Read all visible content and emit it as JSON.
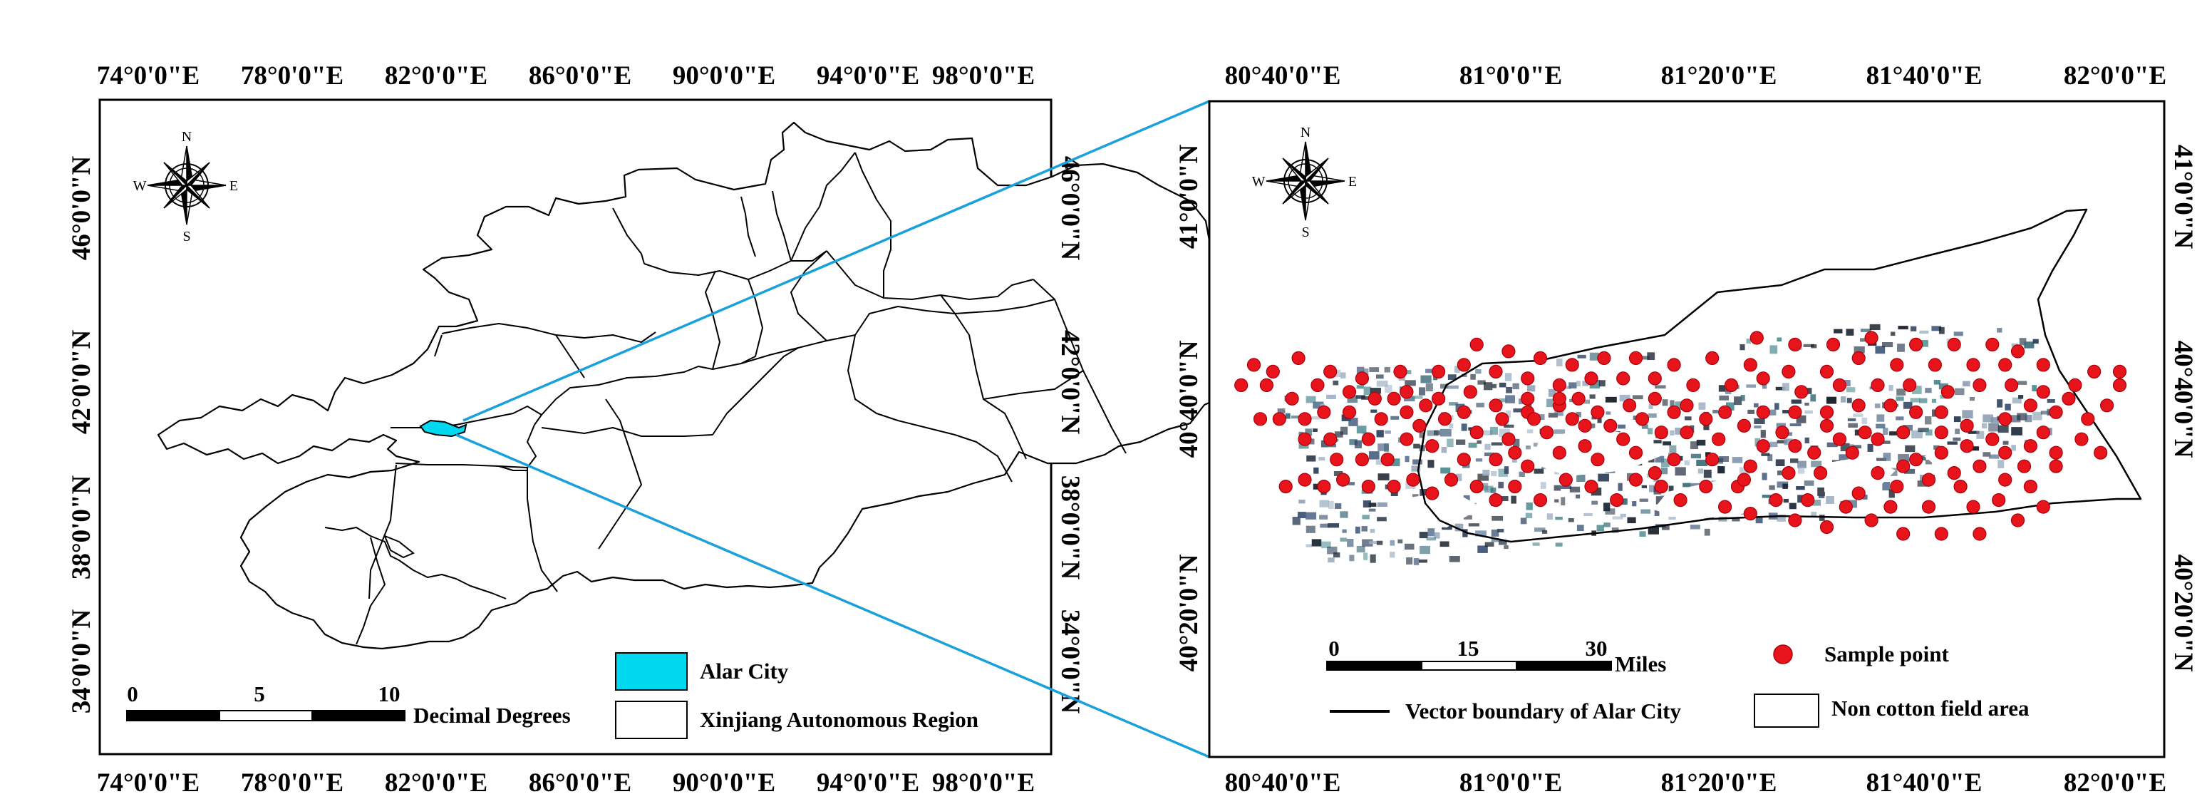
{
  "left_map": {
    "top_lon_labels": [
      "74°0'0\"E",
      "78°0'0\"E",
      "82°0'0\"E",
      "86°0'0\"E",
      "90°0'0\"E",
      "94°0'0\"E",
      "98°0'0\"E"
    ],
    "bottom_lon_labels": [
      "74°0'0\"E",
      "78°0'0\"E",
      "82°0'0\"E",
      "86°0'0\"E",
      "90°0'0\"E",
      "94°0'0\"E",
      "98°0'0\"E"
    ],
    "left_lat_labels": [
      "46°0'0\"N",
      "42°0'0\"N",
      "38°0'0\"N",
      "34°0'0\"N"
    ],
    "right_lat_labels": [
      "46°0'0\"N",
      "42°0'0\"N",
      "38°0'0\"N",
      "34°0'0\"N"
    ],
    "compass": {
      "n": "N",
      "s": "S",
      "e": "E",
      "w": "W"
    },
    "scale": {
      "ticks": [
        "0",
        "5",
        "10"
      ],
      "unit": "Decimal Degrees"
    },
    "legend": [
      {
        "label": "Alar City",
        "color": "#00d8f0"
      },
      {
        "label": "Xinjiang Autonomous Region",
        "color": "#ffffff"
      }
    ]
  },
  "right_map": {
    "top_lon_labels": [
      "80°40'0\"E",
      "81°0'0\"E",
      "81°20'0\"E",
      "81°40'0\"E",
      "82°0'0\"E"
    ],
    "bottom_lon_labels": [
      "80°40'0\"E",
      "81°0'0\"E",
      "81°20'0\"E",
      "81°40'0\"E",
      "82°0'0\"E"
    ],
    "left_lat_labels": [
      "41°0'0\"N",
      "40°40'0\"N",
      "40°20'0\"N"
    ],
    "right_lat_labels": [
      "41°0'0\"N",
      "40°40'0\"N",
      "40°20'0\"N"
    ],
    "compass": {
      "n": "N",
      "s": "S",
      "e": "E",
      "w": "W"
    },
    "scale": {
      "ticks": [
        "0",
        "15",
        "30"
      ],
      "unit": "Miles"
    },
    "legend": {
      "sample_point": "Sample point",
      "vector_boundary": "Vector boundary of Alar City",
      "non_cotton": "Non cotton field area"
    },
    "sample_color": "#e8141c",
    "sample_points": [
      [
        81.84,
        40.61
      ],
      [
        81.88,
        40.6
      ],
      [
        81.86,
        40.63
      ],
      [
        81.92,
        40.62
      ],
      [
        81.95,
        40.6
      ],
      [
        81.83,
        40.58
      ],
      [
        81.88,
        40.58
      ],
      [
        81.8,
        40.6
      ],
      [
        81.78,
        40.62
      ],
      [
        81.74,
        40.61
      ],
      [
        81.7,
        40.6
      ],
      [
        81.66,
        40.59
      ],
      [
        81.7,
        40.63
      ],
      [
        81.76,
        40.58
      ],
      [
        81.8,
        40.56
      ],
      [
        81.84,
        40.55
      ],
      [
        81.79,
        40.53
      ],
      [
        81.73,
        40.55
      ],
      [
        81.68,
        40.56
      ],
      [
        81.63,
        40.55
      ],
      [
        81.6,
        40.57
      ],
      [
        81.57,
        40.54
      ],
      [
        81.62,
        40.52
      ],
      [
        81.68,
        40.52
      ],
      [
        81.75,
        40.52
      ],
      [
        81.82,
        40.5
      ],
      [
        81.86,
        40.52
      ],
      [
        81.76,
        40.48
      ],
      [
        81.7,
        40.48
      ],
      [
        81.64,
        40.48
      ],
      [
        81.59,
        40.5
      ],
      [
        81.55,
        40.52
      ],
      [
        81.52,
        40.49
      ],
      [
        81.47,
        40.5
      ],
      [
        81.49,
        40.53
      ],
      [
        81.44,
        40.53
      ],
      [
        81.4,
        40.51
      ],
      [
        81.36,
        40.52
      ],
      [
        81.33,
        40.55
      ],
      [
        81.38,
        40.55
      ],
      [
        81.29,
        40.53
      ],
      [
        81.26,
        40.55
      ],
      [
        81.22,
        40.56
      ],
      [
        81.19,
        40.53
      ],
      [
        81.15,
        40.55
      ],
      [
        81.11,
        40.56
      ],
      [
        81.07,
        40.53
      ],
      [
        81.03,
        40.55
      ],
      [
        81.0,
        40.53
      ],
      [
        80.97,
        40.55
      ],
      [
        80.93,
        40.56
      ],
      [
        80.9,
        40.54
      ],
      [
        80.87,
        40.56
      ],
      [
        80.84,
        40.55
      ],
      [
        80.8,
        40.55
      ],
      [
        80.76,
        40.56
      ],
      [
        80.73,
        40.55
      ],
      [
        80.7,
        40.56
      ],
      [
        80.67,
        40.55
      ],
      [
        80.83,
        40.59
      ],
      [
        80.79,
        40.59
      ],
      [
        80.75,
        40.59
      ],
      [
        80.86,
        40.62
      ],
      [
        80.9,
        40.61
      ],
      [
        80.95,
        40.59
      ],
      [
        81.0,
        40.59
      ],
      [
        81.05,
        40.58
      ],
      [
        81.1,
        40.6
      ],
      [
        81.16,
        40.59
      ],
      [
        81.22,
        40.6
      ],
      [
        81.28,
        40.59
      ],
      [
        81.34,
        40.59
      ],
      [
        81.4,
        40.58
      ],
      [
        81.46,
        40.57
      ],
      [
        81.5,
        40.6
      ],
      [
        81.56,
        40.6
      ],
      [
        81.6,
        40.62
      ],
      [
        81.54,
        40.62
      ],
      [
        81.47,
        40.61
      ],
      [
        81.42,
        40.61
      ],
      [
        81.35,
        40.62
      ],
      [
        81.3,
        40.63
      ],
      [
        81.26,
        40.63
      ],
      [
        81.2,
        40.62
      ],
      [
        81.14,
        40.64
      ],
      [
        81.08,
        40.63
      ],
      [
        81.02,
        40.62
      ],
      [
        80.97,
        40.63
      ],
      [
        80.92,
        40.65
      ],
      [
        80.86,
        40.66
      ],
      [
        80.82,
        40.65
      ],
      [
        80.77,
        40.66
      ],
      [
        80.73,
        40.66
      ],
      [
        80.7,
        40.65
      ],
      [
        80.66,
        40.65
      ],
      [
        80.63,
        40.65
      ],
      [
        80.68,
        40.68
      ],
      [
        80.72,
        40.7
      ],
      [
        80.77,
        40.69
      ],
      [
        80.81,
        40.68
      ],
      [
        80.86,
        40.69
      ],
      [
        80.91,
        40.68
      ],
      [
        80.96,
        40.69
      ],
      [
        81.0,
        40.67
      ],
      [
        81.05,
        40.66
      ],
      [
        81.1,
        40.67
      ],
      [
        81.16,
        40.66
      ],
      [
        81.21,
        40.67
      ],
      [
        81.25,
        40.68
      ],
      [
        81.3,
        40.67
      ],
      [
        81.36,
        40.66
      ],
      [
        81.42,
        40.66
      ],
      [
        81.47,
        40.66
      ],
      [
        81.52,
        40.66
      ],
      [
        81.57,
        40.67
      ],
      [
        81.62,
        40.67
      ],
      [
        81.66,
        40.66
      ],
      [
        81.7,
        40.66
      ],
      [
        81.74,
        40.64
      ],
      [
        81.64,
        40.63
      ],
      [
        81.58,
        40.63
      ],
      [
        81.52,
        40.64
      ],
      [
        81.45,
        40.63
      ],
      [
        81.39,
        40.64
      ],
      [
        81.33,
        40.65
      ],
      [
        81.28,
        40.66
      ],
      [
        81.23,
        40.65
      ],
      [
        81.18,
        40.64
      ],
      [
        81.12,
        40.65
      ],
      [
        81.06,
        40.65
      ],
      [
        81.01,
        40.65
      ],
      [
        80.95,
        40.66
      ],
      [
        80.89,
        40.67
      ],
      [
        80.84,
        40.68
      ],
      [
        80.79,
        40.71
      ],
      [
        80.74,
        40.72
      ],
      [
        80.69,
        40.74
      ],
      [
        80.65,
        40.72
      ],
      [
        80.62,
        40.73
      ],
      [
        80.6,
        40.7
      ],
      [
        80.64,
        40.7
      ],
      [
        80.85,
        40.72
      ],
      [
        80.91,
        40.72
      ],
      [
        80.95,
        40.73
      ],
      [
        81.0,
        40.72
      ],
      [
        81.05,
        40.71
      ],
      [
        81.1,
        40.7
      ],
      [
        81.15,
        40.71
      ],
      [
        81.2,
        40.71
      ],
      [
        81.25,
        40.71
      ],
      [
        81.31,
        40.7
      ],
      [
        81.37,
        40.7
      ],
      [
        81.42,
        40.71
      ],
      [
        81.48,
        40.69
      ],
      [
        81.54,
        40.7
      ],
      [
        81.6,
        40.7
      ],
      [
        81.65,
        40.7
      ],
      [
        81.71,
        40.69
      ],
      [
        81.76,
        40.7
      ],
      [
        81.81,
        40.7
      ],
      [
        81.86,
        40.69
      ],
      [
        81.91,
        40.7
      ],
      [
        81.94,
        40.72
      ],
      [
        81.98,
        40.72
      ],
      [
        81.86,
        40.73
      ],
      [
        81.8,
        40.73
      ],
      [
        81.75,
        40.73
      ],
      [
        81.69,
        40.73
      ],
      [
        81.63,
        40.73
      ],
      [
        81.57,
        40.74
      ],
      [
        81.52,
        40.72
      ],
      [
        81.46,
        40.72
      ],
      [
        81.4,
        40.73
      ],
      [
        81.34,
        40.74
      ],
      [
        81.28,
        40.73
      ],
      [
        81.22,
        40.74
      ],
      [
        81.17,
        40.74
      ],
      [
        81.12,
        40.73
      ],
      [
        81.07,
        40.74
      ],
      [
        81.02,
        40.75
      ],
      [
        80.97,
        40.76
      ],
      [
        81.05,
        40.68
      ],
      [
        81.1,
        40.68
      ],
      [
        81.13,
        40.68
      ],
      [
        80.88,
        40.64
      ],
      [
        80.8,
        40.62
      ],
      [
        80.74,
        40.62
      ],
      [
        80.7,
        40.62
      ],
      [
        81.03,
        40.6
      ],
      [
        81.14,
        40.61
      ],
      [
        81.25,
        40.57
      ],
      [
        81.39,
        40.56
      ],
      [
        81.51,
        40.57
      ],
      [
        81.64,
        40.58
      ],
      [
        81.72,
        40.57
      ],
      [
        81.8,
        40.65
      ],
      [
        81.84,
        40.67
      ],
      [
        81.88,
        40.66
      ],
      [
        81.9,
        40.68
      ],
      [
        81.93,
        40.65
      ],
      [
        81.96,
        40.67
      ],
      [
        81.98,
        40.7
      ],
      [
        81.82,
        40.75
      ],
      [
        81.78,
        40.76
      ],
      [
        81.72,
        40.76
      ],
      [
        81.66,
        40.76
      ],
      [
        81.59,
        40.77
      ],
      [
        81.53,
        40.76
      ],
      [
        81.47,
        40.76
      ],
      [
        81.41,
        40.77
      ]
    ]
  }
}
